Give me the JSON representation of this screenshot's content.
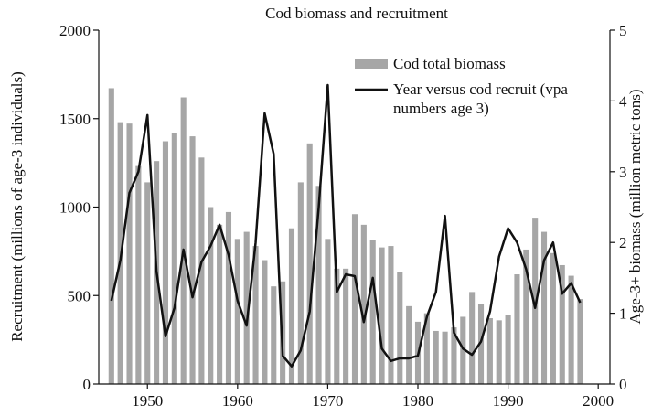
{
  "chart_data": {
    "type": "bar_line",
    "title": "Cod biomass and recruitment",
    "y_label": "Recruitment (millions of age-3 individuals)",
    "y2_label": "Age-3+ biomass (million metric tons)",
    "x": [
      1946,
      1947,
      1948,
      1949,
      1950,
      1951,
      1952,
      1953,
      1954,
      1955,
      1956,
      1957,
      1958,
      1959,
      1960,
      1961,
      1962,
      1963,
      1964,
      1965,
      1966,
      1967,
      1968,
      1969,
      1970,
      1971,
      1972,
      1973,
      1974,
      1975,
      1976,
      1977,
      1978,
      1979,
      1980,
      1981,
      1982,
      1983,
      1984,
      1985,
      1986,
      1987,
      1988,
      1989,
      1990,
      1991,
      1992,
      1993,
      1994,
      1995,
      1996,
      1997,
      1998
    ],
    "series": [
      {
        "name": "Cod total biomass",
        "type": "bar",
        "axis": "y2",
        "color": "#a6a6a6",
        "values": [
          4.18,
          3.7,
          3.68,
          3.08,
          2.85,
          3.15,
          3.43,
          3.55,
          4.05,
          3.5,
          3.2,
          2.5,
          2.25,
          2.43,
          2.05,
          2.15,
          1.95,
          1.75,
          1.38,
          1.45,
          2.2,
          2.85,
          3.4,
          2.8,
          2.05,
          1.63,
          1.63,
          2.4,
          2.25,
          2.03,
          1.93,
          1.95,
          1.58,
          1.1,
          0.88,
          1.0,
          0.75,
          0.74,
          0.8,
          0.95,
          1.3,
          1.13,
          0.93,
          0.9,
          0.98,
          1.55,
          1.9,
          2.35,
          2.15,
          1.85,
          1.68,
          1.53,
          1.2
        ]
      },
      {
        "name": "Year versus cod recruit (vpa numbers age 3)",
        "type": "line",
        "axis": "y",
        "color": "#111111",
        "values": [
          470,
          700,
          1080,
          1200,
          1520,
          640,
          270,
          430,
          760,
          490,
          690,
          780,
          900,
          730,
          470,
          330,
          800,
          1530,
          1300,
          160,
          100,
          190,
          410,
          1000,
          1690,
          520,
          620,
          610,
          350,
          600,
          200,
          130,
          145,
          145,
          160,
          380,
          520,
          950,
          290,
          200,
          165,
          240,
          410,
          720,
          880,
          800,
          650,
          430,
          700,
          800,
          510,
          570,
          460
        ]
      }
    ],
    "xlim": [
      1944.6,
      2001.3
    ],
    "xticks": [
      1950,
      1960,
      1970,
      1980,
      1990,
      2000
    ],
    "ylim": [
      0,
      2000
    ],
    "yticks": [
      0,
      500,
      1000,
      1500,
      2000
    ],
    "y2lim": [
      0,
      5
    ],
    "y2ticks": [
      0,
      1,
      2,
      3,
      4,
      5
    ]
  }
}
